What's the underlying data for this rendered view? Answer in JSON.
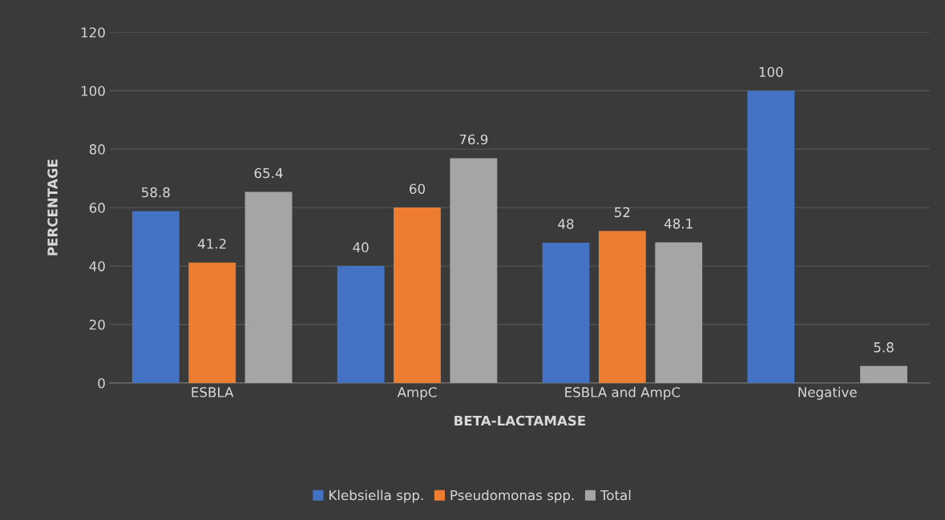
{
  "chart_data": {
    "type": "bar",
    "xlabel": "BETA-LACTAMASE",
    "ylabel": "PERCENTAGE",
    "categories": [
      "ESBLA",
      "AmpC",
      "ESBLA and AmpC",
      "Negative"
    ],
    "series": [
      {
        "name": "Klebsiella spp.",
        "color": "#4472c4",
        "values": [
          58.8,
          40,
          48,
          100
        ],
        "value_labels": [
          "58.8",
          "40",
          "48",
          "100"
        ]
      },
      {
        "name": "Pseudomonas spp.",
        "color": "#ed7d31",
        "values": [
          41.2,
          60,
          52,
          0
        ],
        "value_labels": [
          "41.2",
          "60",
          "52",
          null
        ]
      },
      {
        "name": "Total",
        "color": "#a5a5a5",
        "values": [
          65.4,
          76.9,
          48.1,
          5.8
        ],
        "value_labels": [
          "65.4",
          "76.9",
          "48.1",
          "5.8"
        ]
      }
    ],
    "ylim": [
      0,
      120
    ],
    "yticks": [
      0,
      20,
      40,
      60,
      80,
      100,
      120
    ],
    "grid": "y",
    "legend": "bottom"
  }
}
